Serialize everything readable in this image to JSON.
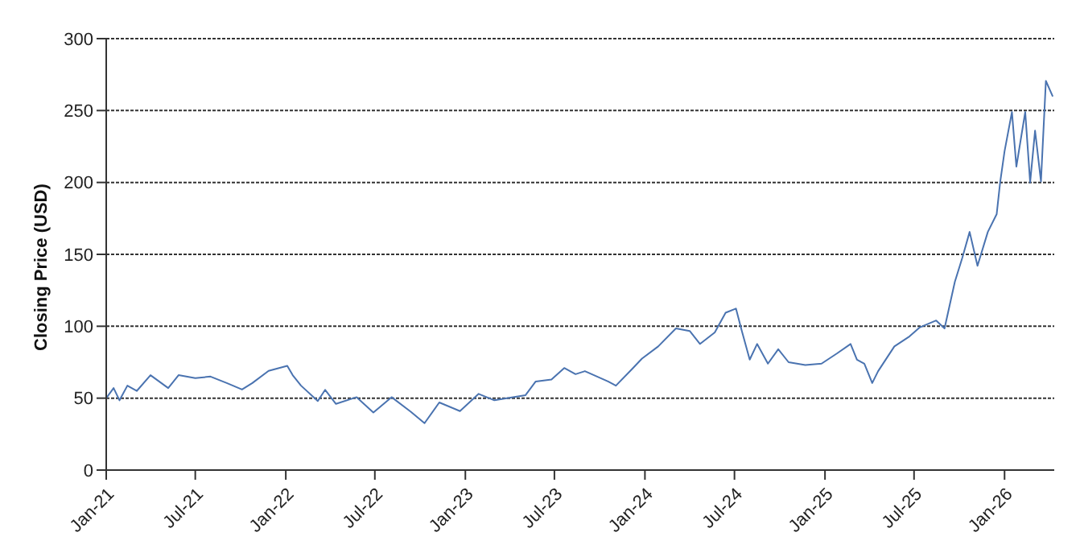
{
  "chart_data": {
    "type": "line",
    "ylabel": "Closing Price (USD)",
    "x": [
      "2021-01-01",
      "2021-01-16",
      "2021-01-28",
      "2021-02-13",
      "2021-03-04",
      "2021-04-01",
      "2021-05-07",
      "2021-05-28",
      "2021-07-01",
      "2021-08-01",
      "2021-09-03",
      "2021-10-04",
      "2021-10-25",
      "2021-11-27",
      "2022-01-04",
      "2022-01-15",
      "2022-02-01",
      "2022-03-07",
      "2022-03-22",
      "2022-04-13",
      "2022-05-25",
      "2022-06-28",
      "2022-08-04",
      "2022-09-12",
      "2022-10-10",
      "2022-11-09",
      "2022-12-21",
      "2023-01-28",
      "2023-03-01",
      "2023-05-03",
      "2023-05-24",
      "2023-06-25",
      "2023-07-21",
      "2023-08-13",
      "2023-09-01",
      "2023-10-18",
      "2023-11-03",
      "2023-12-05",
      "2023-12-26",
      "2024-01-28",
      "2024-03-04",
      "2024-04-01",
      "2024-04-22",
      "2024-05-22",
      "2024-06-13",
      "2024-07-04",
      "2024-07-16",
      "2024-08-01",
      "2024-08-16",
      "2024-09-07",
      "2024-09-28",
      "2024-10-19",
      "2024-11-22",
      "2024-12-25",
      "2025-01-25",
      "2025-02-22",
      "2025-03-07",
      "2025-03-22",
      "2025-04-07",
      "2025-04-19",
      "2025-05-22",
      "2025-06-22",
      "2025-07-13",
      "2025-08-15",
      "2025-09-01",
      "2025-09-22",
      "2025-10-07",
      "2025-10-22",
      "2025-11-07",
      "2025-11-28",
      "2025-12-16",
      "2025-12-23",
      "2026-01-01",
      "2026-01-16",
      "2026-01-25",
      "2026-02-12",
      "2026-02-22",
      "2026-03-04",
      "2026-03-16",
      "2026-03-26",
      "2026-04-09"
    ],
    "series": [
      {
        "color": "#4a73b0",
        "values": [
          50,
          57,
          48.5,
          58.7,
          55,
          66,
          57,
          66,
          64,
          65,
          60.5,
          56,
          60.5,
          69,
          72.5,
          66,
          58.7,
          48,
          55.8,
          46,
          50.7,
          40,
          50.7,
          40.6,
          32.6,
          47,
          41,
          53,
          48.5,
          52,
          61.6,
          63,
          71,
          66.7,
          68.8,
          61.6,
          58.7,
          70,
          77.5,
          86,
          98.5,
          96.7,
          87.7,
          95.7,
          109.4,
          112.3,
          96.7,
          76.8,
          87.7,
          74,
          84,
          75,
          73,
          74,
          81,
          87.7,
          76.8,
          74,
          60.5,
          68.8,
          86,
          93,
          99.3,
          104,
          98.5,
          131,
          147.5,
          165.6,
          142,
          165.6,
          178,
          200,
          221.7,
          249,
          211,
          249,
          200,
          236,
          200.7,
          270.6,
          259.8
        ]
      }
    ],
    "xlim": [
      "2021-01-01",
      "2026-04-12"
    ],
    "xticks": [
      {
        "value": "2021-01-01",
        "label": "Jan-21"
      },
      {
        "value": "2021-07-01",
        "label": "Jul-21"
      },
      {
        "value": "2022-01-01",
        "label": "Jan-22"
      },
      {
        "value": "2022-07-01",
        "label": "Jul-22"
      },
      {
        "value": "2023-01-01",
        "label": "Jan-23"
      },
      {
        "value": "2023-07-01",
        "label": "Jul-23"
      },
      {
        "value": "2024-01-01",
        "label": "Jan-24"
      },
      {
        "value": "2024-07-01",
        "label": "Jul-24"
      },
      {
        "value": "2025-01-01",
        "label": "Jan-25"
      },
      {
        "value": "2025-07-01",
        "label": "Jul-25"
      },
      {
        "value": "2026-01-01",
        "label": "Jan-26"
      }
    ],
    "ylim": [
      0,
      300
    ],
    "yticks": [
      0,
      50,
      100,
      150,
      200,
      250,
      300
    ],
    "grid": "y",
    "line_style": "solid"
  }
}
